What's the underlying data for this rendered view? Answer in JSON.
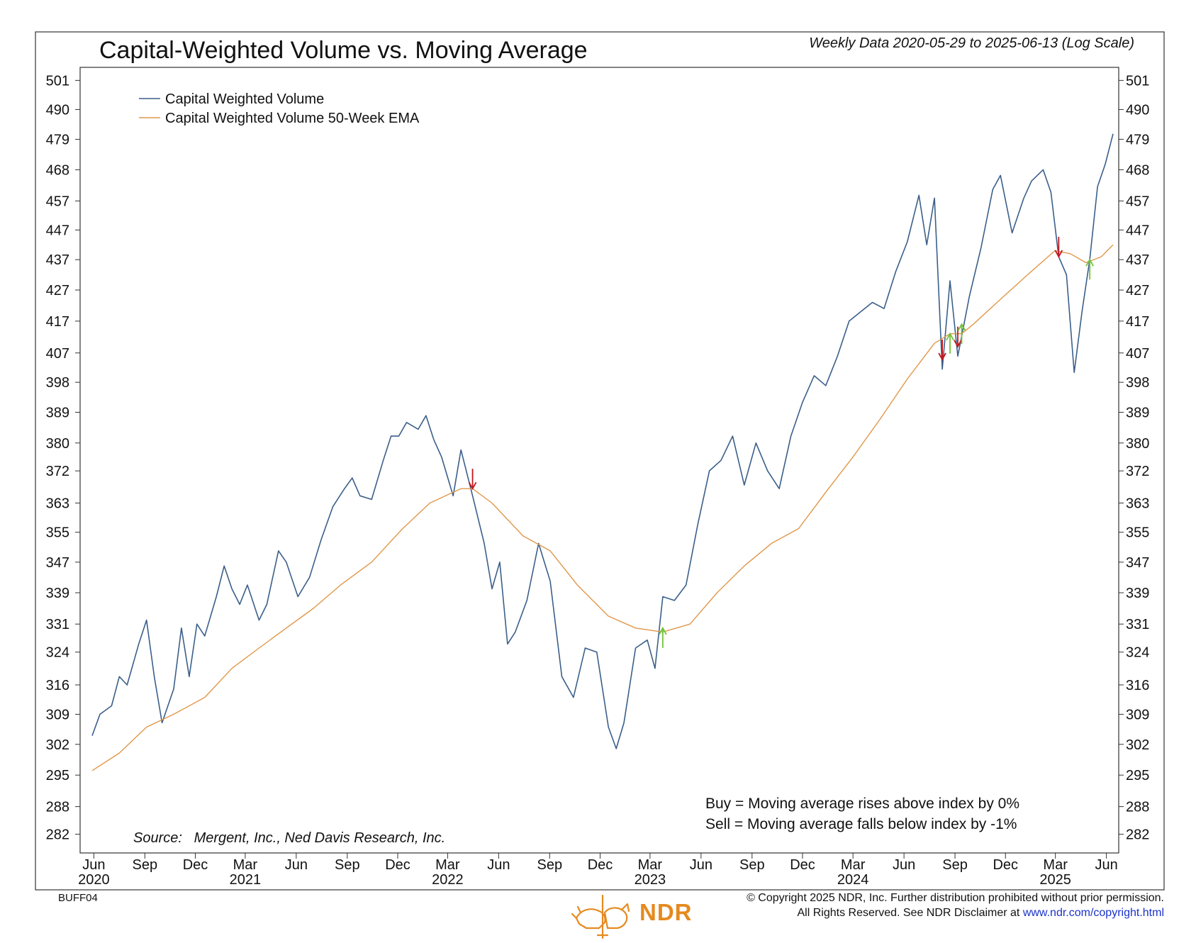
{
  "chart_data": {
    "type": "line",
    "title": "Capital-Weighted Volume vs. Moving Average",
    "subtitle": "Weekly Data 2020-05-29 to 2025-06-13 (Log Scale)",
    "log_scale": true,
    "ylim": [
      278,
      506
    ],
    "y_ticks": [
      282,
      288,
      295,
      302,
      309,
      316,
      324,
      331,
      339,
      347,
      355,
      363,
      372,
      380,
      389,
      398,
      407,
      417,
      427,
      437,
      447,
      457,
      468,
      479,
      490,
      501
    ],
    "x_range": [
      "2020-05-29",
      "2025-06-13"
    ],
    "x_tick_labels": [
      {
        "date": "2020-06-01",
        "label": "Jun"
      },
      {
        "date": "2020-09-01",
        "label": "Sep"
      },
      {
        "date": "2020-12-01",
        "label": "Dec"
      },
      {
        "date": "2021-03-01",
        "label": "Mar"
      },
      {
        "date": "2021-06-01",
        "label": "Jun"
      },
      {
        "date": "2021-09-01",
        "label": "Sep"
      },
      {
        "date": "2021-12-01",
        "label": "Dec"
      },
      {
        "date": "2022-03-01",
        "label": "Mar"
      },
      {
        "date": "2022-06-01",
        "label": "Jun"
      },
      {
        "date": "2022-09-01",
        "label": "Sep"
      },
      {
        "date": "2022-12-01",
        "label": "Dec"
      },
      {
        "date": "2023-03-01",
        "label": "Mar"
      },
      {
        "date": "2023-06-01",
        "label": "Jun"
      },
      {
        "date": "2023-09-01",
        "label": "Sep"
      },
      {
        "date": "2023-12-01",
        "label": "Dec"
      },
      {
        "date": "2024-03-01",
        "label": "Mar"
      },
      {
        "date": "2024-06-01",
        "label": "Jun"
      },
      {
        "date": "2024-09-01",
        "label": "Sep"
      },
      {
        "date": "2024-12-01",
        "label": "Dec"
      },
      {
        "date": "2025-03-01",
        "label": "Mar"
      },
      {
        "date": "2025-06-01",
        "label": "Jun"
      }
    ],
    "year_labels": [
      {
        "date": "2020-06-01",
        "label": "2020"
      },
      {
        "date": "2021-03-01",
        "label": "2021"
      },
      {
        "date": "2022-03-01",
        "label": "2022"
      },
      {
        "date": "2023-03-01",
        "label": "2023"
      },
      {
        "date": "2024-03-01",
        "label": "2024"
      },
      {
        "date": "2025-03-01",
        "label": "2025"
      }
    ],
    "series": [
      {
        "name": "Capital Weighted Volume",
        "color": "#3b5f8a",
        "points": [
          [
            "2020-05-29",
            304
          ],
          [
            "2020-06-12",
            309
          ],
          [
            "2020-07-03",
            311
          ],
          [
            "2020-07-17",
            318
          ],
          [
            "2020-07-31",
            316
          ],
          [
            "2020-08-21",
            326
          ],
          [
            "2020-09-04",
            332
          ],
          [
            "2020-09-18",
            318
          ],
          [
            "2020-10-02",
            307
          ],
          [
            "2020-10-23",
            315
          ],
          [
            "2020-11-06",
            330
          ],
          [
            "2020-11-20",
            318
          ],
          [
            "2020-12-04",
            331
          ],
          [
            "2020-12-18",
            328
          ],
          [
            "2021-01-08",
            338
          ],
          [
            "2021-01-22",
            346
          ],
          [
            "2021-02-05",
            340
          ],
          [
            "2021-02-19",
            336
          ],
          [
            "2021-03-05",
            341
          ],
          [
            "2021-03-26",
            332
          ],
          [
            "2021-04-09",
            336
          ],
          [
            "2021-04-30",
            350
          ],
          [
            "2021-05-14",
            347
          ],
          [
            "2021-06-04",
            338
          ],
          [
            "2021-06-25",
            343
          ],
          [
            "2021-07-16",
            353
          ],
          [
            "2021-08-06",
            362
          ],
          [
            "2021-08-27",
            367
          ],
          [
            "2021-09-10",
            370
          ],
          [
            "2021-09-24",
            365
          ],
          [
            "2021-10-15",
            364
          ],
          [
            "2021-11-05",
            375
          ],
          [
            "2021-11-19",
            382
          ],
          [
            "2021-12-03",
            382
          ],
          [
            "2021-12-17",
            386
          ],
          [
            "2022-01-07",
            384
          ],
          [
            "2022-01-21",
            388
          ],
          [
            "2022-02-04",
            381
          ],
          [
            "2022-02-18",
            376
          ],
          [
            "2022-03-11",
            365
          ],
          [
            "2022-03-25",
            378
          ],
          [
            "2022-04-15",
            365
          ],
          [
            "2022-05-06",
            352
          ],
          [
            "2022-05-20",
            340
          ],
          [
            "2022-06-03",
            347
          ],
          [
            "2022-06-17",
            326
          ],
          [
            "2022-07-01",
            329
          ],
          [
            "2022-07-22",
            337
          ],
          [
            "2022-08-12",
            352
          ],
          [
            "2022-09-02",
            342
          ],
          [
            "2022-09-23",
            318
          ],
          [
            "2022-10-14",
            313
          ],
          [
            "2022-11-04",
            325
          ],
          [
            "2022-11-25",
            324
          ],
          [
            "2022-12-16",
            306
          ],
          [
            "2022-12-30",
            301
          ],
          [
            "2023-01-13",
            307
          ],
          [
            "2023-02-03",
            325
          ],
          [
            "2023-02-24",
            327
          ],
          [
            "2023-03-10",
            320
          ],
          [
            "2023-03-24",
            338
          ],
          [
            "2023-04-14",
            337
          ],
          [
            "2023-05-05",
            341
          ],
          [
            "2023-05-26",
            357
          ],
          [
            "2023-06-16",
            372
          ],
          [
            "2023-07-07",
            375
          ],
          [
            "2023-07-28",
            382
          ],
          [
            "2023-08-18",
            368
          ],
          [
            "2023-09-08",
            380
          ],
          [
            "2023-09-29",
            372
          ],
          [
            "2023-10-20",
            367
          ],
          [
            "2023-11-10",
            382
          ],
          [
            "2023-12-01",
            392
          ],
          [
            "2023-12-22",
            400
          ],
          [
            "2024-01-12",
            397
          ],
          [
            "2024-02-02",
            406
          ],
          [
            "2024-02-23",
            417
          ],
          [
            "2024-03-15",
            420
          ],
          [
            "2024-04-05",
            423
          ],
          [
            "2024-04-26",
            421
          ],
          [
            "2024-05-17",
            433
          ],
          [
            "2024-06-07",
            443
          ],
          [
            "2024-06-28",
            459
          ],
          [
            "2024-07-12",
            442
          ],
          [
            "2024-07-26",
            458
          ],
          [
            "2024-08-09",
            402
          ],
          [
            "2024-08-23",
            430
          ],
          [
            "2024-09-06",
            406
          ],
          [
            "2024-09-27",
            425
          ],
          [
            "2024-10-18",
            441
          ],
          [
            "2024-11-08",
            461
          ],
          [
            "2024-11-22",
            466
          ],
          [
            "2024-12-13",
            446
          ],
          [
            "2025-01-03",
            458
          ],
          [
            "2025-01-17",
            464
          ],
          [
            "2025-02-07",
            468
          ],
          [
            "2025-02-21",
            460
          ],
          [
            "2025-03-07",
            438
          ],
          [
            "2025-03-21",
            432
          ],
          [
            "2025-04-04",
            401
          ],
          [
            "2025-04-18",
            420
          ],
          [
            "2025-05-02",
            437
          ],
          [
            "2025-05-16",
            462
          ],
          [
            "2025-05-30",
            470
          ],
          [
            "2025-06-13",
            481
          ]
        ]
      },
      {
        "name": "Capital Weighted Volume 50-Week EMA",
        "color": "#e0974a",
        "points": [
          [
            "2020-05-29",
            296
          ],
          [
            "2020-07-17",
            300
          ],
          [
            "2020-09-04",
            306
          ],
          [
            "2020-10-23",
            309
          ],
          [
            "2020-12-18",
            313
          ],
          [
            "2021-02-05",
            320
          ],
          [
            "2021-03-26",
            325
          ],
          [
            "2021-05-14",
            330
          ],
          [
            "2021-07-02",
            335
          ],
          [
            "2021-08-20",
            341
          ],
          [
            "2021-10-15",
            347
          ],
          [
            "2021-12-10",
            356
          ],
          [
            "2022-01-28",
            363
          ],
          [
            "2022-03-25",
            367
          ],
          [
            "2022-04-15",
            367
          ],
          [
            "2022-05-20",
            363
          ],
          [
            "2022-07-15",
            354
          ],
          [
            "2022-09-02",
            350
          ],
          [
            "2022-10-21",
            341
          ],
          [
            "2022-12-16",
            333
          ],
          [
            "2023-02-03",
            330
          ],
          [
            "2023-03-24",
            329
          ],
          [
            "2023-05-12",
            331
          ],
          [
            "2023-06-30",
            339
          ],
          [
            "2023-08-18",
            346
          ],
          [
            "2023-10-06",
            352
          ],
          [
            "2023-11-24",
            356
          ],
          [
            "2024-01-12",
            366
          ],
          [
            "2024-03-01",
            376
          ],
          [
            "2024-04-19",
            387
          ],
          [
            "2024-06-07",
            399
          ],
          [
            "2024-07-26",
            410
          ],
          [
            "2024-08-23",
            413
          ],
          [
            "2024-09-13",
            413
          ],
          [
            "2024-10-04",
            416
          ],
          [
            "2024-11-22",
            424
          ],
          [
            "2025-01-10",
            432
          ],
          [
            "2025-02-28",
            440
          ],
          [
            "2025-03-28",
            439
          ],
          [
            "2025-04-25",
            436
          ],
          [
            "2025-05-23",
            438
          ],
          [
            "2025-06-13",
            442
          ]
        ]
      }
    ],
    "signals": [
      {
        "type": "sell",
        "date": "2022-04-15",
        "value": 367
      },
      {
        "type": "buy",
        "date": "2023-03-24",
        "value": 330
      },
      {
        "type": "sell",
        "date": "2024-08-09",
        "value": 405
      },
      {
        "type": "buy",
        "date": "2024-08-23",
        "value": 413
      },
      {
        "type": "sell",
        "date": "2024-09-06",
        "value": 409
      },
      {
        "type": "buy",
        "date": "2024-09-13",
        "value": 416
      },
      {
        "type": "sell",
        "date": "2025-03-07",
        "value": 438
      },
      {
        "type": "buy",
        "date": "2025-05-02",
        "value": 437
      }
    ],
    "legend_placement": "top-left",
    "grid": false
  },
  "annotations": {
    "buy_rule": "Buy = Moving average rises above index by 0%",
    "sell_rule": "Sell = Moving average falls below index by -1%",
    "source": "Source:   Mergent, Inc., Ned Davis Research, Inc."
  },
  "footer": {
    "code": "BUFF04",
    "copyright_line1": "© Copyright 2025 NDR, Inc. Further distribution prohibited without prior permission.",
    "copyright_line2": "All Rights Reserved. See NDR Disclaimer at ",
    "link": "www.ndr.com/copyright.html",
    "logo_text": "NDR"
  },
  "colors": {
    "buy_arrow": "#6fc23b",
    "sell_arrow": "#c4161c",
    "logo": "#e58a1f"
  }
}
